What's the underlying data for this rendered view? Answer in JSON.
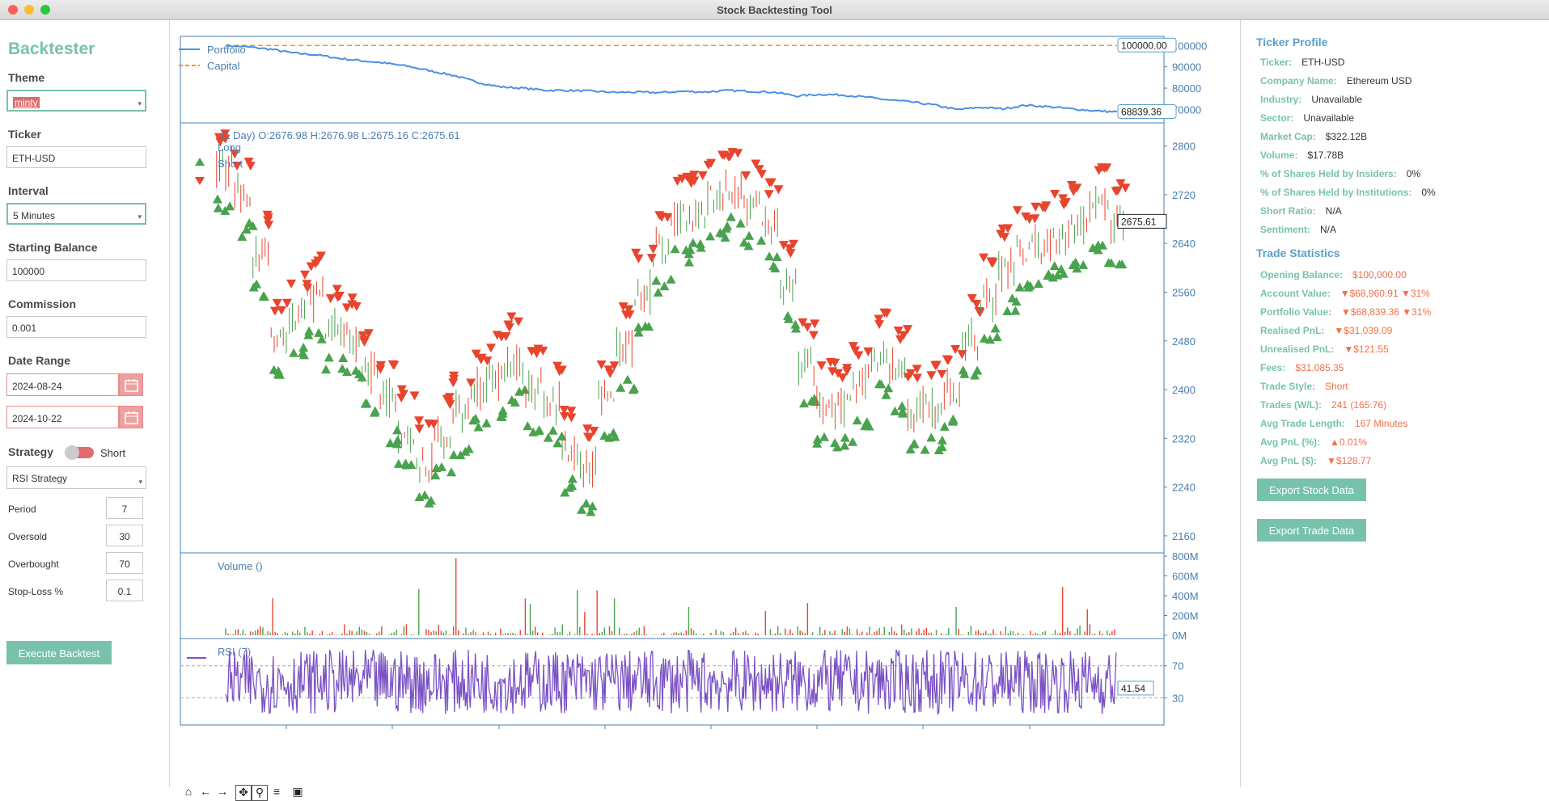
{
  "window": {
    "title": "Stock Backtesting Tool"
  },
  "sidebar": {
    "app_title": "Backtester",
    "theme_label": "Theme",
    "theme_value": "minty",
    "ticker_label": "Ticker",
    "ticker_value": "ETH-USD",
    "interval_label": "Interval",
    "interval_value": "5 Minutes",
    "balance_label": "Starting Balance",
    "balance_value": "100000",
    "commission_label": "Commission",
    "commission_value": "0.001",
    "date_label": "Date Range",
    "date_start": "2024-08-24",
    "date_end": "2024-10-22",
    "strategy_label": "Strategy",
    "strategy_toggle": "Short",
    "strategy_value": "RSI Strategy",
    "params": [
      {
        "label": "Period",
        "value": "7"
      },
      {
        "label": "Oversold",
        "value": "30"
      },
      {
        "label": "Overbought",
        "value": "70"
      },
      {
        "label": "Stop-Loss %",
        "value": "0.1"
      }
    ],
    "execute_label": "Execute Backtest"
  },
  "chart_data": [
    {
      "type": "line",
      "legend": [
        "Portfolio",
        "Capital"
      ],
      "yticks": [
        "100000",
        "90000",
        "80000",
        "70000"
      ],
      "ylim": [
        66000,
        102000
      ],
      "series": [
        {
          "name": "Portfolio",
          "color": "#4a90e2",
          "values": [
            100000,
            99300,
            98200,
            96400,
            95600,
            93900,
            92800,
            91700,
            90200,
            88000,
            85900,
            82800,
            80600,
            80000,
            79000,
            78900,
            78600,
            78000,
            78100,
            77900,
            78500,
            78200,
            78900,
            78500,
            78100,
            76300,
            77100,
            76800,
            75800,
            74500,
            73500,
            72100,
            69900,
            71000,
            70300,
            72000,
            71300,
            70300,
            69400,
            68839
          ]
        },
        {
          "name": "Capital",
          "color": "#ff8c1a",
          "values": [
            100000,
            100000
          ]
        }
      ],
      "last_labels": [
        "100000.00",
        "68839.36"
      ]
    },
    {
      "type": "candlestick",
      "legend_info": "(1 Day) O:2676.98 H:2676.98 L:2675.16 C:2675.61",
      "legend": [
        "Long",
        "Short"
      ],
      "yticks": [
        "2800",
        "2720",
        "2640",
        "2560",
        "2480",
        "2400",
        "2320",
        "2240",
        "2160"
      ],
      "ylim": [
        2140,
        2830
      ],
      "close": [
        2760,
        2720,
        2620,
        2480,
        2520,
        2550,
        2500,
        2480,
        2430,
        2380,
        2330,
        2280,
        2320,
        2360,
        2400,
        2420,
        2450,
        2400,
        2380,
        2300,
        2270,
        2380,
        2470,
        2560,
        2630,
        2680,
        2690,
        2720,
        2730,
        2700,
        2670,
        2570,
        2440,
        2380,
        2370,
        2410,
        2460,
        2430,
        2370,
        2370,
        2400,
        2480,
        2550,
        2600,
        2630,
        2640,
        2650,
        2670,
        2700,
        2675.61
      ],
      "last_label": "2675.61",
      "long_color": "#49a24e",
      "short_color": "#e8442e"
    },
    {
      "type": "bar",
      "legend": [
        "Volume ()"
      ],
      "yticks": [
        "800M",
        "600M",
        "400M",
        "200M",
        "0M"
      ],
      "ylim": [
        0,
        800
      ]
    },
    {
      "type": "line",
      "legend": [
        "RSI (7)"
      ],
      "yticks": [
        "70",
        "30"
      ],
      "ylim": [
        0,
        100
      ],
      "last_label": "41.54"
    }
  ],
  "profile": {
    "title": "Ticker Profile",
    "rows": [
      {
        "k": "Ticker:",
        "v": "ETH-USD"
      },
      {
        "k": "Company Name:",
        "v": "Ethereum USD"
      },
      {
        "k": "Industry:",
        "v": "Unavailable"
      },
      {
        "k": "Sector:",
        "v": "Unavailable"
      },
      {
        "k": "Market Cap:",
        "v": "$322.12B"
      },
      {
        "k": "Volume:",
        "v": "$17.78B"
      },
      {
        "k": "% of Shares Held by Insiders:",
        "v": "0%"
      },
      {
        "k": "% of Shares Held by Institutions:",
        "v": "0%"
      },
      {
        "k": "Short Ratio:",
        "v": "N/A"
      },
      {
        "k": "Sentiment:",
        "v": "N/A"
      }
    ]
  },
  "stats": {
    "title": "Trade Statistics",
    "rows": [
      {
        "k": "Opening Balance:",
        "v": "$100,000.00"
      },
      {
        "k": "Account Value:",
        "v": "▼$68,960.91 ▼31%"
      },
      {
        "k": "Portfolio Value:",
        "v": "▼$68,839.36 ▼31%"
      },
      {
        "k": "Realised PnL:",
        "v": "▼$31,039.09"
      },
      {
        "k": "Unrealised PnL:",
        "v": "▼$121.55"
      },
      {
        "k": "Fees:",
        "v": "$31,085.35"
      },
      {
        "k": "Trade Style:",
        "v": "Short"
      },
      {
        "k": "Trades (W/L):",
        "v": "241 (165:76)"
      },
      {
        "k": "Avg Trade Length:",
        "v": "167 Minutes"
      },
      {
        "k": "Avg PnL (%):",
        "v": "▲0.01%"
      },
      {
        "k": "Avg PnL ($):",
        "v": "▼$128.77"
      }
    ]
  },
  "buttons": {
    "export_stock": "Export Stock Data",
    "export_trade": "Export Trade Data"
  }
}
